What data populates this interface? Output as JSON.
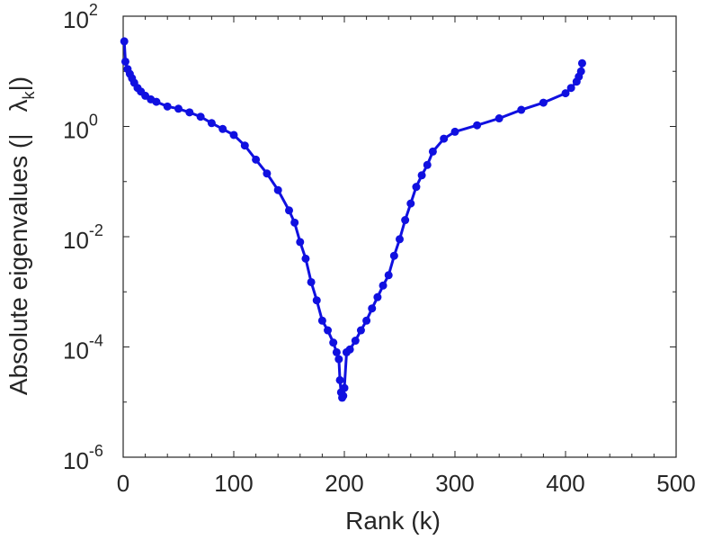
{
  "chart_data": {
    "type": "line",
    "xlabel": "Rank (k)",
    "ylabel": "Absolute eigenvalues (|",
    "ylabel_lambda": "λ",
    "ylabel_sub": "k",
    "ylabel_close": "|)",
    "xlim": [
      0,
      500
    ],
    "ylim": [
      1e-06,
      100
    ],
    "yscale": "log",
    "grid": false,
    "legend": "none",
    "xticks": [
      0,
      100,
      200,
      300,
      400,
      500
    ],
    "xtick_labels": [
      "0",
      "100",
      "200",
      "300",
      "400",
      "500"
    ],
    "yticks": [
      1e-06,
      0.0001,
      0.01,
      1,
      100
    ],
    "ytick_labels": [
      {
        "base": "10",
        "exp": "-6"
      },
      {
        "base": "10",
        "exp": "-4"
      },
      {
        "base": "10",
        "exp": "-2"
      },
      {
        "base": "10",
        "exp": "0"
      },
      {
        "base": "10",
        "exp": "2"
      }
    ],
    "series": [
      {
        "color": "#1010e0",
        "marker": "circle",
        "x": [
          1,
          2,
          4,
          6,
          8,
          10,
          13,
          16,
          20,
          25,
          30,
          40,
          50,
          60,
          70,
          80,
          90,
          100,
          110,
          120,
          130,
          140,
          150,
          155,
          160,
          165,
          170,
          175,
          180,
          185,
          190,
          193,
          195,
          196,
          197,
          198,
          199,
          200,
          202,
          205,
          210,
          215,
          220,
          225,
          230,
          235,
          240,
          245,
          250,
          255,
          260,
          265,
          270,
          275,
          280,
          290,
          300,
          320,
          340,
          360,
          380,
          400,
          405,
          410,
          412,
          414,
          415
        ],
        "values": [
          35,
          15,
          11,
          9,
          7.5,
          6.2,
          5,
          4.3,
          3.6,
          3.1,
          2.8,
          2.3,
          2.1,
          1.8,
          1.5,
          1.15,
          0.9,
          0.7,
          0.45,
          0.25,
          0.14,
          0.07,
          0.03,
          0.018,
          0.008,
          0.004,
          0.0015,
          0.0007,
          0.0003,
          0.0002,
          0.00012,
          8e-05,
          6e-05,
          2.5e-05,
          1.5e-05,
          1.2e-05,
          1.3e-05,
          1.8e-05,
          8e-05,
          9e-05,
          0.00013,
          0.0002,
          0.0003,
          0.0005,
          0.0008,
          0.0013,
          0.002,
          0.0045,
          0.009,
          0.02,
          0.04,
          0.08,
          0.13,
          0.2,
          0.35,
          0.6,
          0.8,
          1.05,
          1.4,
          2.0,
          2.7,
          4.0,
          5.0,
          6.5,
          8.0,
          10,
          14
        ]
      }
    ]
  }
}
